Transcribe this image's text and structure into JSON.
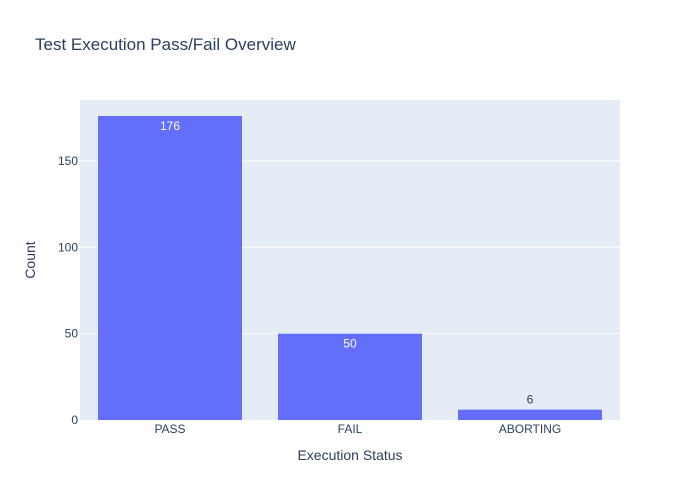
{
  "chart_data": {
    "type": "bar",
    "title": "Test Execution Pass/Fail Overview",
    "xlabel": "Execution Status",
    "ylabel": "Count",
    "categories": [
      "PASS",
      "FAIL",
      "ABORTING"
    ],
    "values": [
      176,
      50,
      6
    ],
    "data_labels": [
      "176",
      "50",
      "6"
    ],
    "ylim": [
      0,
      185.26
    ],
    "y_ticks": [
      0,
      50,
      100,
      150
    ],
    "y_tick_labels": [
      "0",
      "50",
      "100",
      "150"
    ],
    "grid": true,
    "colors": {
      "bar": "#636efa",
      "plot_bg": "#e5ecf6",
      "grid": "#ffffff",
      "text": "#2a3f5f",
      "label_inside": "#ffffff",
      "label_outside": "#2a3f5f"
    }
  }
}
